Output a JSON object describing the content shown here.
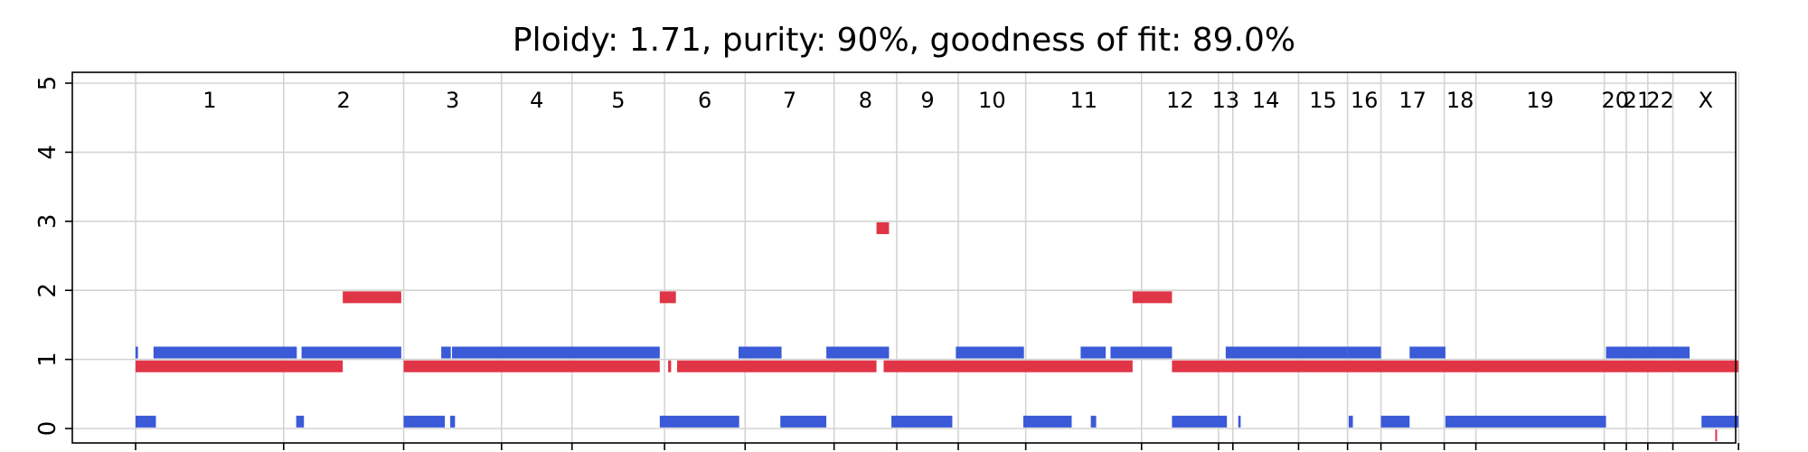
{
  "chart_data": {
    "type": "scatter",
    "title": "Ploidy: 1.71, purity: 90%, goodness of fit: 89.0%",
    "xlabel": "",
    "ylabel": "",
    "ylim": [
      0,
      5
    ],
    "yticks": [
      0,
      1,
      2,
      3,
      4,
      5
    ],
    "grid": true,
    "colors": {
      "major": "#e03546",
      "minor": "#3a5ad8",
      "grid": "#d4d4d4"
    },
    "chromosomes": [
      {
        "label": "1",
        "start": 0,
        "end": 248
      },
      {
        "label": "2",
        "start": 248,
        "end": 449
      },
      {
        "label": "3",
        "start": 449,
        "end": 613
      },
      {
        "label": "4",
        "start": 613,
        "end": 731
      },
      {
        "label": "5",
        "start": 731,
        "end": 886
      },
      {
        "label": "6",
        "start": 886,
        "end": 1021
      },
      {
        "label": "7",
        "start": 1021,
        "end": 1170
      },
      {
        "label": "8",
        "start": 1170,
        "end": 1275
      },
      {
        "label": "9",
        "start": 1275,
        "end": 1378
      },
      {
        "label": "10",
        "start": 1378,
        "end": 1491
      },
      {
        "label": "11",
        "start": 1491,
        "end": 1685
      },
      {
        "label": "12",
        "start": 1685,
        "end": 1814
      },
      {
        "label": "13",
        "start": 1814,
        "end": 1838
      },
      {
        "label": "14",
        "start": 1838,
        "end": 1948
      },
      {
        "label": "15",
        "start": 1948,
        "end": 2030
      },
      {
        "label": "16",
        "start": 2030,
        "end": 2086
      },
      {
        "label": "17",
        "start": 2086,
        "end": 2192
      },
      {
        "label": "18",
        "start": 2192,
        "end": 2245
      },
      {
        "label": "19",
        "start": 2245,
        "end": 2460
      },
      {
        "label": "20",
        "start": 2460,
        "end": 2497
      },
      {
        "label": "21",
        "start": 2497,
        "end": 2533
      },
      {
        "label": "22",
        "start": 2533,
        "end": 2575
      },
      {
        "label": "X",
        "start": 2575,
        "end": 2685
      }
    ],
    "series": [
      {
        "name": "",
        "role": "major",
        "segments": [
          {
            "x0": 0,
            "x1": 347,
            "y": 0.9
          },
          {
            "x0": 347,
            "x1": 445,
            "y": 1.9
          },
          {
            "x0": 449,
            "x1": 878,
            "y": 0.9
          },
          {
            "x0": 878,
            "x1": 905,
            "y": 1.9
          },
          {
            "x0": 892,
            "x1": 897,
            "y": 0.9
          },
          {
            "x0": 907,
            "x1": 1241,
            "y": 0.9
          },
          {
            "x0": 1241,
            "x1": 1262,
            "y": 2.9
          },
          {
            "x0": 1253,
            "x1": 1670,
            "y": 0.9
          },
          {
            "x0": 1670,
            "x1": 1736,
            "y": 1.9
          },
          {
            "x0": 1736,
            "x1": 2685,
            "y": 0.9
          },
          {
            "x0": 2646,
            "x1": 2648,
            "y": -0.1
          }
        ]
      },
      {
        "name": "",
        "role": "minor",
        "segments": [
          {
            "x0": 0,
            "x1": 4,
            "y": 1.1
          },
          {
            "x0": 30,
            "x1": 270,
            "y": 1.1
          },
          {
            "x0": 278,
            "x1": 445,
            "y": 1.1
          },
          {
            "x0": 0,
            "x1": 34,
            "y": 0.1
          },
          {
            "x0": 269,
            "x1": 282,
            "y": 0.1
          },
          {
            "x0": 449,
            "x1": 518,
            "y": 0.1
          },
          {
            "x0": 527,
            "x1": 535,
            "y": 0.1
          },
          {
            "x0": 512,
            "x1": 528,
            "y": 1.1
          },
          {
            "x0": 530,
            "x1": 878,
            "y": 1.1
          },
          {
            "x0": 878,
            "x1": 1011,
            "y": 0.1
          },
          {
            "x0": 1010,
            "x1": 1082,
            "y": 1.1
          },
          {
            "x0": 1080,
            "x1": 1157,
            "y": 0.1
          },
          {
            "x0": 1157,
            "x1": 1262,
            "y": 1.1
          },
          {
            "x0": 1266,
            "x1": 1368,
            "y": 0.1
          },
          {
            "x0": 1374,
            "x1": 1488,
            "y": 1.1
          },
          {
            "x0": 1487,
            "x1": 1568,
            "y": 0.1
          },
          {
            "x0": 1583,
            "x1": 1625,
            "y": 1.1
          },
          {
            "x0": 1633,
            "x1": 1736,
            "y": 1.1
          },
          {
            "x0": 1600,
            "x1": 1609,
            "y": 0.1
          },
          {
            "x0": 1736,
            "x1": 1828,
            "y": 0.1
          },
          {
            "x0": 1847,
            "x1": 1851,
            "y": 0.1
          },
          {
            "x0": 1826,
            "x1": 2030,
            "y": 1.1
          },
          {
            "x0": 2030,
            "x1": 2086,
            "y": 1.1
          },
          {
            "x0": 2032,
            "x1": 2039,
            "y": 0.1
          },
          {
            "x0": 2086,
            "x1": 2134,
            "y": 0.1
          },
          {
            "x0": 2134,
            "x1": 2194,
            "y": 1.1
          },
          {
            "x0": 2194,
            "x1": 2463,
            "y": 0.1
          },
          {
            "x0": 2463,
            "x1": 2603,
            "y": 1.1
          },
          {
            "x0": 2623,
            "x1": 2685,
            "y": 0.1
          }
        ]
      }
    ]
  }
}
